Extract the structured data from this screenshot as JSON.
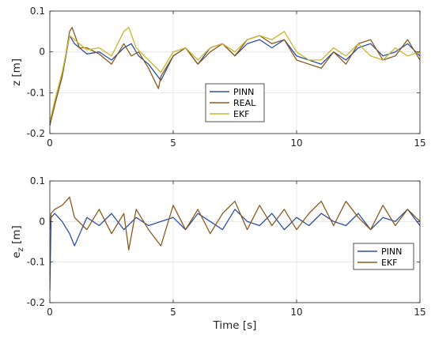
{
  "chart_data": [
    {
      "type": "line",
      "ylabel": "z [m]",
      "ylabel_sub": "",
      "xlabel": "",
      "xlim": [
        0,
        15
      ],
      "ylim": [
        -0.2,
        0.1
      ],
      "xticks": [
        "0",
        "5",
        "10",
        "15"
      ],
      "yticks": [
        "-0.2",
        "-0.1",
        "0",
        "0.1"
      ],
      "grid": true,
      "legend": {
        "position": "center",
        "entries": [
          "PINN",
          "REAL",
          "EKF"
        ]
      },
      "series": [
        {
          "name": "PINN",
          "color": "#2b4fa8",
          "x": [
            0,
            0.2,
            0.5,
            0.8,
            1.0,
            1.5,
            2.0,
            2.5,
            3.0,
            3.3,
            3.6,
            4.0,
            4.5,
            5.0,
            5.5,
            6.0,
            6.5,
            7.0,
            7.5,
            8.0,
            8.5,
            9.0,
            9.5,
            10.0,
            10.5,
            11.0,
            11.5,
            12.0,
            12.5,
            13.0,
            13.5,
            14.0,
            14.5,
            15.0
          ],
          "y": [
            -0.18,
            -0.13,
            -0.06,
            0.04,
            0.02,
            -0.005,
            0.0,
            -0.02,
            0.01,
            0.02,
            -0.01,
            -0.03,
            -0.07,
            -0.01,
            0.01,
            -0.03,
            0.01,
            0.02,
            -0.01,
            0.02,
            0.03,
            0.01,
            0.03,
            -0.01,
            -0.02,
            -0.03,
            0.0,
            -0.02,
            0.01,
            0.02,
            -0.01,
            0.0,
            0.02,
            -0.01
          ]
        },
        {
          "name": "REAL",
          "color": "#8a5a1f",
          "x": [
            0,
            0.2,
            0.5,
            0.8,
            0.9,
            1.2,
            1.5,
            2.0,
            2.5,
            3.0,
            3.3,
            3.6,
            4.0,
            4.4,
            4.5,
            5.0,
            5.5,
            6.0,
            6.5,
            7.0,
            7.5,
            8.0,
            8.5,
            9.0,
            9.5,
            10.0,
            10.5,
            11.0,
            11.5,
            12.0,
            12.5,
            13.0,
            13.5,
            14.0,
            14.5,
            15.0
          ],
          "y": [
            -0.18,
            -0.13,
            -0.06,
            0.05,
            0.06,
            0.01,
            0.01,
            -0.005,
            -0.03,
            0.02,
            -0.01,
            0.0,
            -0.04,
            -0.09,
            -0.06,
            -0.01,
            0.01,
            -0.03,
            0.0,
            0.02,
            -0.01,
            0.03,
            0.04,
            0.02,
            0.03,
            -0.02,
            -0.03,
            -0.04,
            0.0,
            -0.03,
            0.02,
            0.03,
            -0.02,
            -0.01,
            0.03,
            -0.02
          ]
        },
        {
          "name": "EKF",
          "color": "#c9b52a",
          "x": [
            0,
            0.2,
            0.5,
            0.8,
            1.0,
            1.5,
            2.0,
            2.5,
            3.0,
            3.2,
            3.5,
            4.0,
            4.5,
            5.0,
            5.5,
            6.0,
            6.5,
            7.0,
            7.5,
            8.0,
            8.5,
            9.0,
            9.5,
            10.0,
            10.5,
            11.0,
            11.5,
            12.0,
            12.5,
            13.0,
            13.5,
            14.0,
            14.5,
            15.0
          ],
          "y": [
            -0.17,
            -0.12,
            -0.05,
            0.04,
            0.03,
            0.005,
            0.01,
            -0.01,
            0.05,
            0.06,
            0.01,
            -0.02,
            -0.05,
            0.0,
            0.01,
            -0.02,
            0.01,
            0.02,
            0.0,
            0.03,
            0.04,
            0.03,
            0.05,
            0.0,
            -0.02,
            -0.02,
            0.01,
            -0.01,
            0.02,
            -0.01,
            -0.02,
            0.01,
            -0.01,
            0.0
          ]
        }
      ]
    },
    {
      "type": "line",
      "ylabel": "e",
      "ylabel_sub": "z",
      "ylabel_unit": " [m]",
      "xlabel": "Time [s]",
      "xlim": [
        0,
        15
      ],
      "ylim": [
        -0.2,
        0.1
      ],
      "xticks": [
        "0",
        "5",
        "10",
        "15"
      ],
      "yticks": [
        "-0.2",
        "-0.1",
        "0",
        "0.1"
      ],
      "grid": true,
      "legend": {
        "position": "bottom-right",
        "entries": [
          "PINN",
          "EKF"
        ]
      },
      "series": [
        {
          "name": "PINN",
          "color": "#2b4fa8",
          "x": [
            0,
            0.05,
            0.2,
            0.5,
            0.8,
            1.0,
            1.5,
            2.0,
            2.5,
            3.0,
            3.5,
            4.0,
            4.5,
            5.0,
            5.5,
            6.0,
            6.5,
            7.0,
            7.5,
            8.0,
            8.5,
            9.0,
            9.5,
            10.0,
            10.5,
            11.0,
            11.5,
            12.0,
            12.5,
            13.0,
            13.5,
            14.0,
            14.5,
            15.0
          ],
          "y": [
            -0.17,
            0.01,
            0.02,
            0.0,
            -0.03,
            -0.06,
            0.01,
            -0.01,
            0.02,
            -0.02,
            0.01,
            -0.01,
            0.0,
            0.01,
            -0.02,
            0.02,
            0.0,
            -0.02,
            0.03,
            0.0,
            -0.01,
            0.02,
            -0.02,
            0.01,
            -0.01,
            0.02,
            0.0,
            -0.01,
            0.02,
            -0.02,
            0.01,
            0.0,
            0.03,
            -0.01
          ]
        },
        {
          "name": "EKF",
          "color": "#8a5a1f",
          "x": [
            0,
            0.05,
            0.2,
            0.5,
            0.8,
            1.0,
            1.5,
            2.0,
            2.5,
            3.0,
            3.2,
            3.5,
            4.0,
            4.5,
            5.0,
            5.5,
            6.0,
            6.5,
            7.0,
            7.5,
            8.0,
            8.5,
            9.0,
            9.5,
            10.0,
            10.5,
            11.0,
            11.5,
            12.0,
            12.5,
            13.0,
            13.5,
            14.0,
            14.5,
            15.0
          ],
          "y": [
            -0.02,
            0.02,
            0.03,
            0.04,
            0.06,
            0.01,
            -0.02,
            0.03,
            -0.03,
            0.02,
            -0.07,
            0.03,
            -0.02,
            -0.06,
            0.04,
            -0.02,
            0.03,
            -0.03,
            0.02,
            0.05,
            -0.02,
            0.04,
            -0.01,
            0.03,
            -0.02,
            0.02,
            0.05,
            -0.01,
            0.05,
            0.01,
            -0.02,
            0.04,
            -0.01,
            0.03,
            0.0
          ]
        }
      ]
    }
  ]
}
